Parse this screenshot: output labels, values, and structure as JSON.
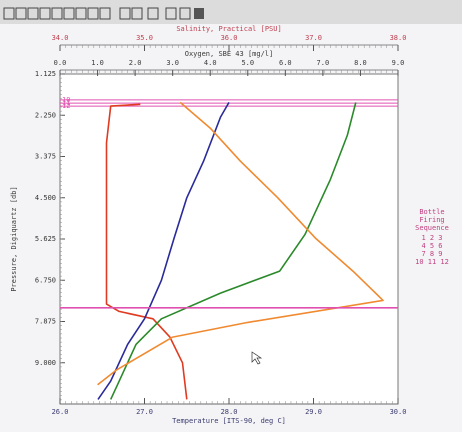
{
  "chart_data": {
    "type": "line",
    "x_axes": [
      {
        "label": "Temperature [ITS-90, deg C]",
        "color": "#3a3a70",
        "position": "bottom",
        "lim": [
          26,
          30
        ],
        "ticks": [
          {
            "value": 26,
            "label": "26.0"
          },
          {
            "value": 27,
            "label": "27.0"
          },
          {
            "value": 28,
            "label": "28.0"
          },
          {
            "value": 29,
            "label": "29.0"
          },
          {
            "value": 30,
            "label": "30.0"
          }
        ]
      },
      {
        "label": "Oxygen, SBE 43 [mg/l]",
        "color": "#3a3a3a",
        "position": "top-inner",
        "lim": [
          0,
          9
        ],
        "ticks": [
          {
            "value": 0,
            "label": "0.0"
          },
          {
            "value": 1,
            "label": "1.0"
          },
          {
            "value": 2,
            "label": "2.0"
          },
          {
            "value": 3,
            "label": "3.0"
          },
          {
            "value": 4,
            "label": "4.0"
          },
          {
            "value": 5,
            "label": "5.0"
          },
          {
            "value": 6,
            "label": "6.0"
          },
          {
            "value": 7,
            "label": "7.0"
          },
          {
            "value": 8,
            "label": "8.0"
          },
          {
            "value": 9,
            "label": "9.0"
          }
        ]
      },
      {
        "label": "Salinity, Practical [PSU]",
        "color": "#c04050",
        "position": "top-outer",
        "lim": [
          34,
          38
        ],
        "ticks": [
          {
            "value": 34,
            "label": "34.0"
          },
          {
            "value": 35,
            "label": "35.0"
          },
          {
            "value": 36,
            "label": "36.0"
          },
          {
            "value": 37,
            "label": "37.0"
          },
          {
            "value": 38,
            "label": "38.0"
          }
        ]
      }
    ],
    "ylabel": "Pressure, Digiquartz [db]",
    "ylim": [
      1.125,
      10.125
    ],
    "y_inverted": true,
    "yticks": [
      1.125,
      {
        "value": 2.25,
        "label": "2.250"
      },
      3.375,
      {
        "value": 4.5,
        "label": "4.500"
      },
      5.625,
      {
        "value": 6.75,
        "label": "6.750"
      },
      7.875,
      {
        "value": 9,
        "label": "9.000"
      }
    ],
    "series": [
      {
        "axis": 0,
        "color": "#e03a20",
        "values": [
          26.95,
          26.6,
          26.55,
          26.55,
          26.55,
          26.7,
          27.1,
          27.3,
          27.45,
          27.5
        ],
        "pressure": [
          1.95,
          2.0,
          3.0,
          5.0,
          7.4,
          7.6,
          7.8,
          8.3,
          9.0,
          10.0
        ]
      },
      {
        "axis": 0,
        "color": "#2a2a9a",
        "values": [
          28.0,
          27.9,
          27.7,
          27.5,
          27.35,
          27.2,
          27.0,
          26.8,
          26.6,
          26.45
        ],
        "pressure": [
          1.9,
          2.3,
          3.5,
          4.5,
          5.6,
          6.75,
          7.8,
          8.5,
          9.5,
          10.0
        ]
      },
      {
        "axis": 2,
        "color": "#2a8a2a",
        "values": [
          37.5,
          37.4,
          37.2,
          36.9,
          36.6,
          35.9,
          35.2,
          34.9,
          34.7,
          34.6
        ],
        "pressure": [
          1.9,
          2.8,
          4.0,
          5.5,
          6.5,
          7.1,
          7.8,
          8.5,
          9.5,
          10.0
        ]
      },
      {
        "axis": 1,
        "color": "#f08a30",
        "values": [
          3.2,
          4.0,
          4.8,
          5.8,
          6.8,
          7.8,
          8.6,
          5.0,
          3.0,
          1.5,
          1.0
        ],
        "pressure": [
          1.9,
          2.6,
          3.5,
          4.5,
          5.6,
          6.5,
          7.3,
          7.9,
          8.3,
          9.2,
          9.6
        ]
      },
      {
        "axis": 0,
        "color": "#e050b0",
        "values": [
          26,
          30
        ],
        "pressure": [
          7.5,
          7.5
        ]
      }
    ],
    "bottle_color": "#e050b0",
    "bottles": [
      {
        "label": "10",
        "pressure": 1.83
      },
      {
        "label": "11",
        "pressure": 1.92
      },
      {
        "label": "12",
        "pressure": 2.0
      }
    ],
    "legend": {
      "color": "#c04080",
      "title": [
        "Bottle",
        "Firing",
        "Sequence"
      ],
      "rows": [
        "1  2  3",
        "4  5  6",
        "7  8  9",
        "10 11 12"
      ]
    }
  }
}
